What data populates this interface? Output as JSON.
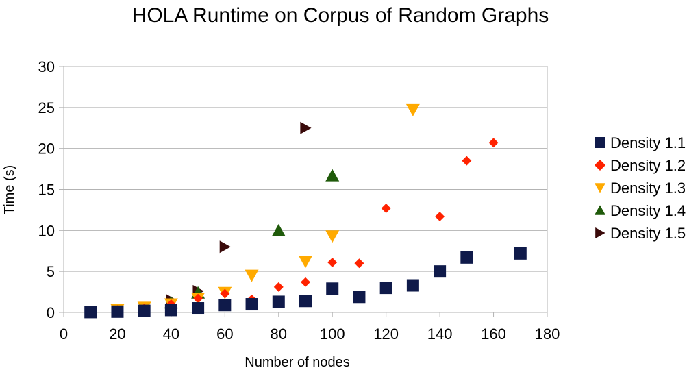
{
  "chart_data": {
    "type": "scatter",
    "title": "HOLA Runtime on Corpus of Random Graphs",
    "xlabel": "Number of nodes",
    "ylabel": "Time (s)",
    "xlim": [
      0,
      180
    ],
    "ylim": [
      0,
      30
    ],
    "x_ticks": [
      "0",
      "20",
      "40",
      "60",
      "80",
      "100",
      "120",
      "140",
      "160",
      "180"
    ],
    "y_ticks": [
      "0",
      "5",
      "10",
      "15",
      "20",
      "25",
      "30"
    ],
    "grid": "horizontal",
    "legend_position": "right",
    "series": [
      {
        "name": "Density 1.1",
        "marker": "square",
        "color": "#0f1a4a",
        "points": [
          [
            10,
            0.05
          ],
          [
            20,
            0.1
          ],
          [
            30,
            0.2
          ],
          [
            40,
            0.3
          ],
          [
            50,
            0.5
          ],
          [
            60,
            0.9
          ],
          [
            70,
            1.0
          ],
          [
            80,
            1.3
          ],
          [
            90,
            1.4
          ],
          [
            100,
            2.9
          ],
          [
            110,
            1.9
          ],
          [
            120,
            3.0
          ],
          [
            130,
            3.3
          ],
          [
            140,
            5.0
          ],
          [
            150,
            6.7
          ],
          [
            170,
            7.2
          ]
        ]
      },
      {
        "name": "Density 1.2",
        "marker": "diamond",
        "color": "#ff2200",
        "points": [
          [
            20,
            0.3
          ],
          [
            30,
            0.5
          ],
          [
            40,
            1.0
          ],
          [
            50,
            1.7
          ],
          [
            60,
            2.3
          ],
          [
            70,
            1.6
          ],
          [
            80,
            3.1
          ],
          [
            90,
            3.7
          ],
          [
            100,
            6.1
          ],
          [
            110,
            6.0
          ],
          [
            120,
            12.7
          ],
          [
            140,
            11.7
          ],
          [
            150,
            18.5
          ],
          [
            160,
            20.7
          ]
        ]
      },
      {
        "name": "Density 1.3",
        "marker": "triangle-down",
        "color": "#ffaa00",
        "points": [
          [
            20,
            0.3
          ],
          [
            30,
            0.6
          ],
          [
            40,
            1.0
          ],
          [
            50,
            1.7
          ],
          [
            60,
            2.4
          ],
          [
            70,
            4.5
          ],
          [
            90,
            6.2
          ],
          [
            100,
            9.3
          ],
          [
            130,
            24.7
          ]
        ]
      },
      {
        "name": "Density 1.4",
        "marker": "triangle-up",
        "color": "#1f5a0a",
        "points": [
          [
            40,
            1.2
          ],
          [
            50,
            2.4
          ],
          [
            80,
            10.0
          ],
          [
            100,
            16.7
          ]
        ]
      },
      {
        "name": "Density 1.5",
        "marker": "triangle-right",
        "color": "#3a0a0a",
        "points": [
          [
            20,
            0.3
          ],
          [
            40,
            1.5
          ],
          [
            50,
            2.6
          ],
          [
            60,
            8.0
          ],
          [
            90,
            22.5
          ]
        ]
      }
    ]
  }
}
